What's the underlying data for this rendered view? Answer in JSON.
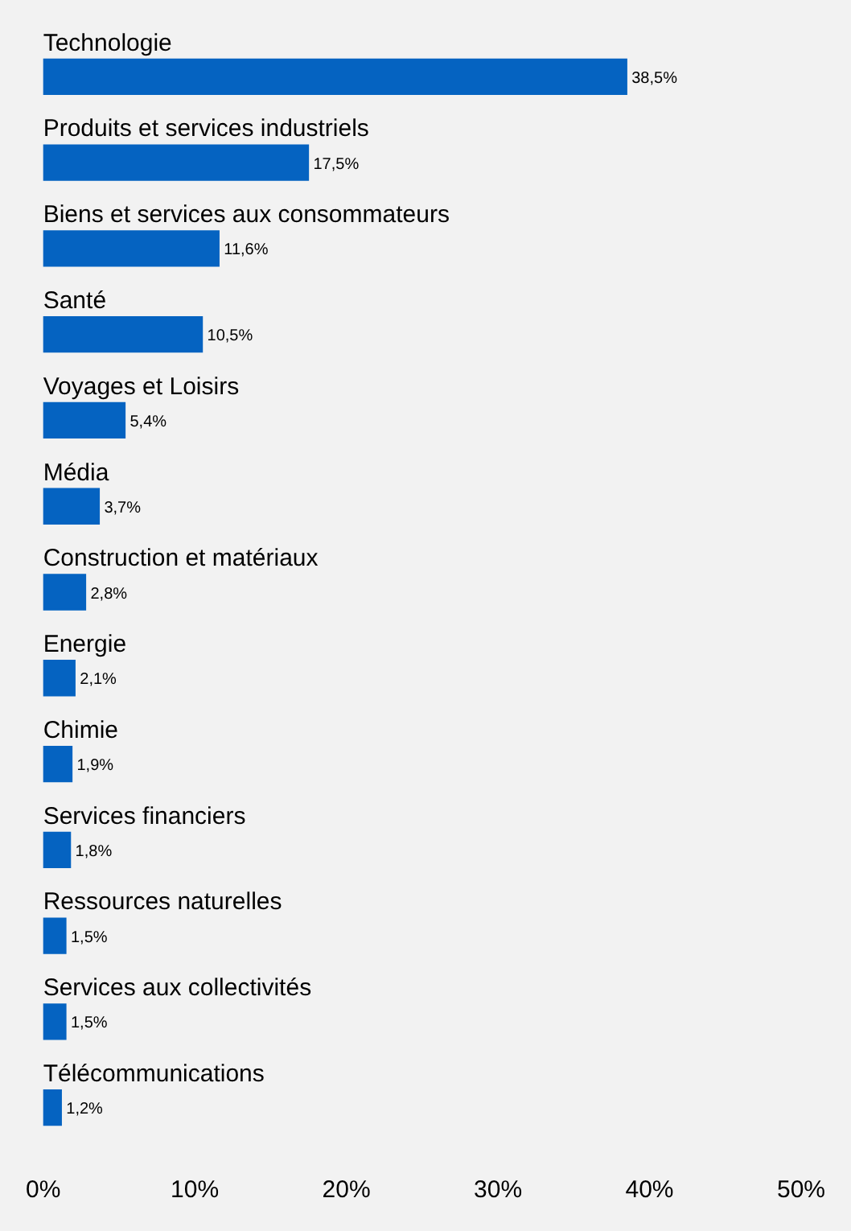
{
  "chart_data": {
    "type": "bar",
    "orientation": "horizontal",
    "categories": [
      "Technologie",
      "Produits et services industriels",
      "Biens et services aux consommateurs",
      "Santé",
      "Voyages et Loisirs",
      "Média",
      "Construction et matériaux",
      "Energie",
      "Chimie",
      "Services financiers",
      "Ressources naturelles",
      "Services aux collectivités",
      "Télécommunications"
    ],
    "values": [
      38.5,
      17.5,
      11.6,
      10.5,
      5.4,
      3.7,
      2.8,
      2.1,
      1.9,
      1.8,
      1.5,
      1.5,
      1.2
    ],
    "value_labels": [
      "38,5%",
      "17,5%",
      "11,6%",
      "10,5%",
      "5,4%",
      "3,7%",
      "2,8%",
      "2,1%",
      "1,9%",
      "1,8%",
      "1,5%",
      "1,5%",
      "1,2%"
    ],
    "color": "#0563c1",
    "xlim": [
      0,
      50
    ],
    "xticks": [
      {
        "value": 0,
        "label": "0%"
      },
      {
        "value": 10,
        "label": "10%"
      },
      {
        "value": 20,
        "label": "20%"
      },
      {
        "value": 30,
        "label": "30%"
      },
      {
        "value": 40,
        "label": "40%"
      },
      {
        "value": 50,
        "label": "50%"
      }
    ],
    "grid": false,
    "legend": false
  }
}
